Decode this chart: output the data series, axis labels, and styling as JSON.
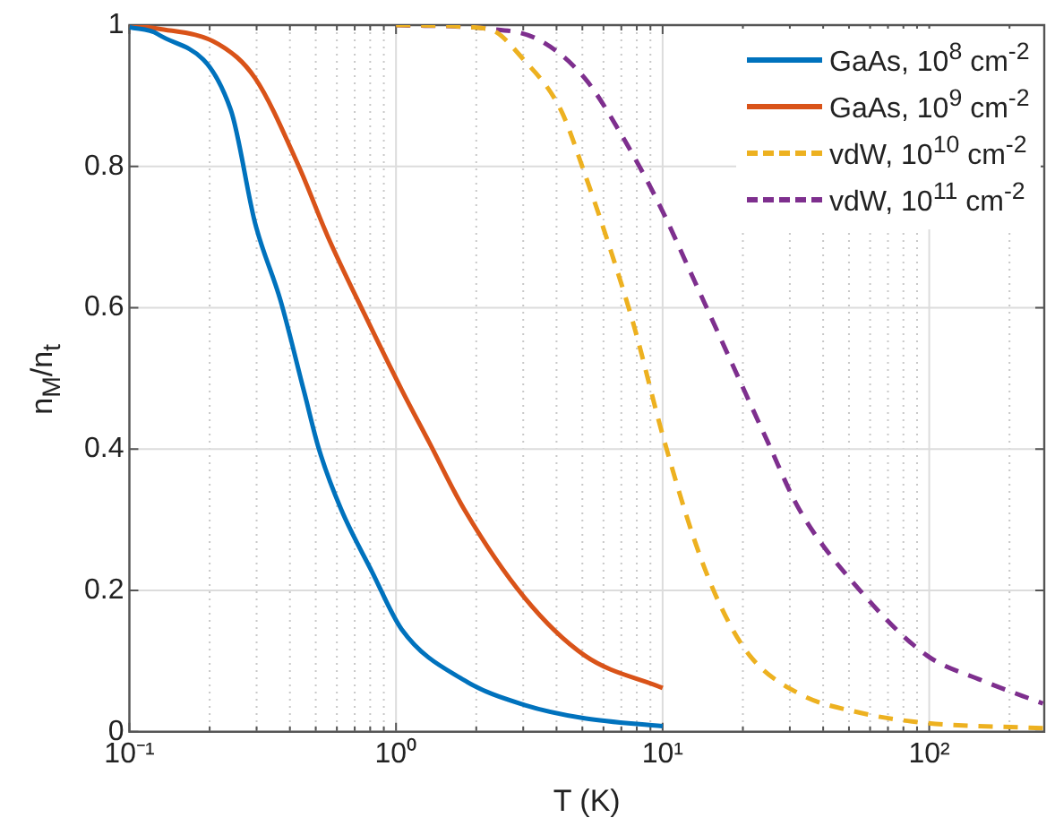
{
  "chart_data": {
    "type": "line",
    "xlabel": "T (K)",
    "ylabel": "n$_{M}$/n$_{t}$",
    "log": "x",
    "grid": true,
    "legend": "top right",
    "xlim": [
      0.1,
      270
    ],
    "ylim": [
      0,
      1
    ],
    "xticks": [
      {
        "value": 0.1,
        "label": "10⁻¹"
      },
      {
        "value": 0.2,
        "label": null
      },
      {
        "value": 0.3,
        "label": null
      },
      {
        "value": 0.4,
        "label": null
      },
      {
        "value": 0.5,
        "label": null
      },
      {
        "value": 0.6,
        "label": null
      },
      {
        "value": 0.7,
        "label": null
      },
      {
        "value": 0.8,
        "label": null
      },
      {
        "value": 0.9,
        "label": null
      },
      {
        "value": 1,
        "label": "10⁰"
      },
      {
        "value": 2,
        "label": null
      },
      {
        "value": 3,
        "label": null
      },
      {
        "value": 4,
        "label": null
      },
      {
        "value": 5,
        "label": null
      },
      {
        "value": 6,
        "label": null
      },
      {
        "value": 7,
        "label": null
      },
      {
        "value": 8,
        "label": null
      },
      {
        "value": 9,
        "label": null
      },
      {
        "value": 10,
        "label": "10¹"
      },
      {
        "value": 20,
        "label": null
      },
      {
        "value": 30,
        "label": null
      },
      {
        "value": 40,
        "label": null
      },
      {
        "value": 50,
        "label": null
      },
      {
        "value": 60,
        "label": null
      },
      {
        "value": 70,
        "label": null
      },
      {
        "value": 80,
        "label": null
      },
      {
        "value": 90,
        "label": null
      },
      {
        "value": 100,
        "label": "10²"
      },
      {
        "value": 200,
        "label": null
      }
    ],
    "yticks": [
      0,
      0.2,
      0.4,
      0.6,
      0.8,
      1
    ],
    "series": [
      {
        "name": "GaAs, 10$^{8}$ cm$^{-2}$",
        "color": "#0072bd",
        "line_style": "solid",
        "x": [
          0.1,
          0.128,
          0.24,
          0.296,
          0.369,
          0.453,
          0.514,
          0.622,
          0.814,
          1.05,
          1.8,
          3.03,
          5.1,
          10
        ],
        "values": [
          0.997,
          0.987,
          0.88,
          0.72,
          0.61,
          0.48,
          0.4,
          0.315,
          0.226,
          0.145,
          0.073,
          0.038,
          0.019,
          0.008
        ]
      },
      {
        "name": "GaAs, 10$^{9}$ cm$^{-2}$",
        "color": "#d95319",
        "line_style": "solid",
        "x": [
          0.1,
          0.128,
          0.216,
          0.296,
          0.432,
          0.556,
          0.764,
          1.05,
          1.33,
          1.8,
          3.03,
          5.1,
          10
        ],
        "values": [
          0.999,
          0.995,
          0.973,
          0.925,
          0.8,
          0.7,
          0.59,
          0.484,
          0.41,
          0.315,
          0.19,
          0.108,
          0.062
        ]
      },
      {
        "name": "vdW, 10$^{10}$ cm$^{-2}$",
        "color": "#edb120",
        "line_style": "dashed",
        "x": [
          1,
          2.2,
          3.03,
          4.15,
          5.1,
          6.4,
          7.8,
          10,
          13.2,
          16.4,
          21.2,
          32.5,
          55,
          94,
          270
        ],
        "values": [
          1,
          0.995,
          0.95,
          0.88,
          0.79,
          0.68,
          0.575,
          0.42,
          0.27,
          0.18,
          0.108,
          0.054,
          0.027,
          0.013,
          0.005
        ]
      },
      {
        "name": "vdW, 10$^{11}$ cm$^{-2}$",
        "color": "#7e2f8e",
        "line_style": "dashed",
        "x": [
          1,
          2.2,
          3.4,
          5.1,
          7,
          9.6,
          13.2,
          19.3,
          24.8,
          32.5,
          55,
          98,
          157,
          267
        ],
        "values": [
          1,
          0.995,
          0.98,
          0.925,
          0.845,
          0.75,
          0.637,
          0.5,
          0.41,
          0.315,
          0.2,
          0.108,
          0.073,
          0.04
        ]
      }
    ]
  }
}
